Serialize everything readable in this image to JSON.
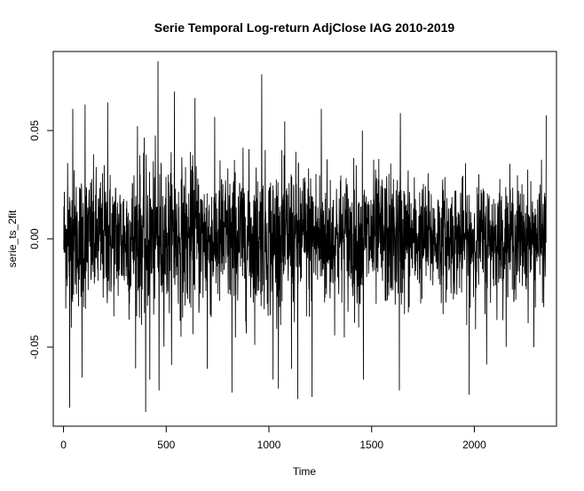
{
  "chart_data": {
    "type": "line",
    "title": "Serie Temporal Log-return AdjClose IAG 2010-2019",
    "xlabel": "Time",
    "ylabel": "serie_ts_2fit",
    "xlim": [
      -50,
      2400
    ],
    "ylim": [
      -0.0865,
      0.0865
    ],
    "x_ticks": [
      0,
      500,
      1000,
      1500,
      2000
    ],
    "x_tick_labels": [
      "0",
      "500",
      "1000",
      "1500",
      "2000"
    ],
    "y_ticks": [
      -0.05,
      0.0,
      0.05
    ],
    "y_tick_labels": [
      "-0.05",
      "0.00",
      "0.05"
    ],
    "grid": false,
    "legend": "none",
    "line_color": "#000000",
    "series": [
      {
        "n_observations": 2350,
        "x_start": 1,
        "x_end": 2350,
        "min": -0.08,
        "max": 0.082,
        "typical_abs_range": 0.025,
        "peaks": [
          {
            "x": 20,
            "y": 0.035
          },
          {
            "x": 45,
            "y": 0.06
          },
          {
            "x": 90,
            "y": 0.06
          },
          {
            "x": 105,
            "y": 0.062
          },
          {
            "x": 215,
            "y": 0.063
          },
          {
            "x": 360,
            "y": 0.052
          },
          {
            "x": 460,
            "y": 0.082
          },
          {
            "x": 540,
            "y": 0.068
          },
          {
            "x": 640,
            "y": 0.065
          },
          {
            "x": 820,
            "y": 0.075
          },
          {
            "x": 965,
            "y": 0.076
          },
          {
            "x": 1255,
            "y": 0.06
          },
          {
            "x": 1455,
            "y": 0.05
          },
          {
            "x": 1640,
            "y": 0.058
          },
          {
            "x": 2355,
            "y": 0.057
          }
        ],
        "troughs": [
          {
            "x": 30,
            "y": -0.078
          },
          {
            "x": 90,
            "y": -0.064
          },
          {
            "x": 400,
            "y": -0.08
          },
          {
            "x": 420,
            "y": -0.065
          },
          {
            "x": 465,
            "y": -0.07
          },
          {
            "x": 700,
            "y": -0.06
          },
          {
            "x": 820,
            "y": -0.071
          },
          {
            "x": 1020,
            "y": -0.065
          },
          {
            "x": 1110,
            "y": -0.06
          },
          {
            "x": 1140,
            "y": -0.074
          },
          {
            "x": 1210,
            "y": -0.073
          },
          {
            "x": 1460,
            "y": -0.065
          },
          {
            "x": 1635,
            "y": -0.07
          },
          {
            "x": 1975,
            "y": -0.072
          },
          {
            "x": 2060,
            "y": -0.058
          },
          {
            "x": 2290,
            "y": -0.05
          }
        ]
      }
    ]
  }
}
